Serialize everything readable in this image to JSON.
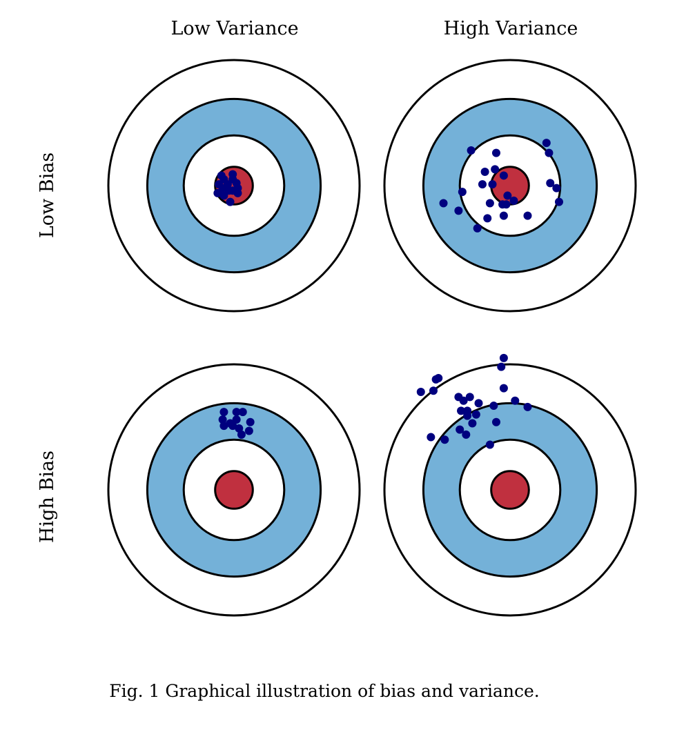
{
  "column_headers": [
    "Low Variance",
    "High Variance"
  ],
  "row_headers": [
    "Low Bias",
    "High Bias"
  ],
  "caption": "Fig. 1 Graphical illustration of bias and variance.",
  "colors": {
    "ring_outer": "#ffffff",
    "ring_blue": "#74b1d8",
    "ring_inner": "#ffffff",
    "bullseye": "#c0303f",
    "stroke": "#000000",
    "dots": "#00007f"
  },
  "ring_radii_target_units": [
    10,
    6.9,
    4.0,
    1.5
  ],
  "targets": [
    {
      "id": "low-bias-low-variance",
      "row": 0,
      "col": 0,
      "dots": [
        [
          -1.0,
          -0.8
        ],
        [
          -0.1,
          -0.9
        ],
        [
          -0.8,
          -0.5
        ],
        [
          -0.1,
          -0.5
        ],
        [
          -1.2,
          -0.1
        ],
        [
          -0.5,
          -0.1
        ],
        [
          0.3,
          0.2
        ],
        [
          -0.1,
          0.4
        ],
        [
          -1.3,
          0.6
        ],
        [
          -0.8,
          0.8
        ],
        [
          -0.3,
          1.3
        ],
        [
          0.3,
          0.6
        ],
        [
          -0.9,
          0.2
        ],
        [
          -0.4,
          0.4
        ],
        [
          0.2,
          -0.2
        ]
      ]
    },
    {
      "id": "low-bias-high-variance",
      "row": 0,
      "col": 1,
      "dots": [
        [
          -3.1,
          -2.8
        ],
        [
          -1.1,
          -2.6
        ],
        [
          2.9,
          -3.4
        ],
        [
          3.1,
          -2.6
        ],
        [
          -2.0,
          -1.1
        ],
        [
          -1.2,
          -1.3
        ],
        [
          -0.5,
          -0.8
        ],
        [
          -2.2,
          -0.1
        ],
        [
          -1.4,
          -0.1
        ],
        [
          -3.8,
          0.5
        ],
        [
          3.2,
          -0.2
        ],
        [
          3.7,
          0.2
        ],
        [
          -5.3,
          1.4
        ],
        [
          -4.1,
          2.0
        ],
        [
          -1.6,
          1.4
        ],
        [
          -0.2,
          0.8
        ],
        [
          0.3,
          1.2
        ],
        [
          -0.6,
          1.5
        ],
        [
          -0.3,
          1.5
        ],
        [
          3.9,
          1.3
        ],
        [
          -1.8,
          2.6
        ],
        [
          -0.5,
          2.4
        ],
        [
          1.4,
          2.4
        ],
        [
          -2.6,
          3.4
        ]
      ]
    },
    {
      "id": "high-bias-low-variance",
      "row": 1,
      "col": 0,
      "dots": [
        [
          -0.8,
          -6.2
        ],
        [
          0.2,
          -6.2
        ],
        [
          0.7,
          -6.2
        ],
        [
          -0.9,
          -5.6
        ],
        [
          0.2,
          -5.6
        ],
        [
          1.3,
          -5.4
        ],
        [
          -0.8,
          -5.1
        ],
        [
          -0.1,
          -5.1
        ],
        [
          0.4,
          -4.9
        ],
        [
          1.2,
          -4.7
        ],
        [
          0.6,
          -4.4
        ],
        [
          -0.3,
          -5.3
        ]
      ]
    },
    {
      "id": "high-bias-high-variance",
      "row": 1,
      "col": 1,
      "dots": [
        [
          -0.5,
          -10.5
        ],
        [
          -0.7,
          -9.8
        ],
        [
          -5.7,
          -8.9
        ],
        [
          -5.9,
          -8.8
        ],
        [
          -7.1,
          -7.8
        ],
        [
          -6.1,
          -7.9
        ],
        [
          -0.5,
          -8.1
        ],
        [
          -4.1,
          -7.4
        ],
        [
          -3.7,
          -7.1
        ],
        [
          -3.2,
          -7.4
        ],
        [
          -2.5,
          -6.9
        ],
        [
          0.4,
          -7.1
        ],
        [
          1.4,
          -6.6
        ],
        [
          -1.3,
          -6.7
        ],
        [
          -3.9,
          -6.3
        ],
        [
          -3.4,
          -6.3
        ],
        [
          -3.4,
          -5.9
        ],
        [
          -2.7,
          -6.0
        ],
        [
          -3.0,
          -5.3
        ],
        [
          -1.1,
          -5.4
        ],
        [
          -4.0,
          -4.8
        ],
        [
          -3.5,
          -4.4
        ],
        [
          -6.3,
          -4.2
        ],
        [
          -5.2,
          -4.0
        ],
        [
          -1.6,
          -3.6
        ]
      ]
    }
  ]
}
